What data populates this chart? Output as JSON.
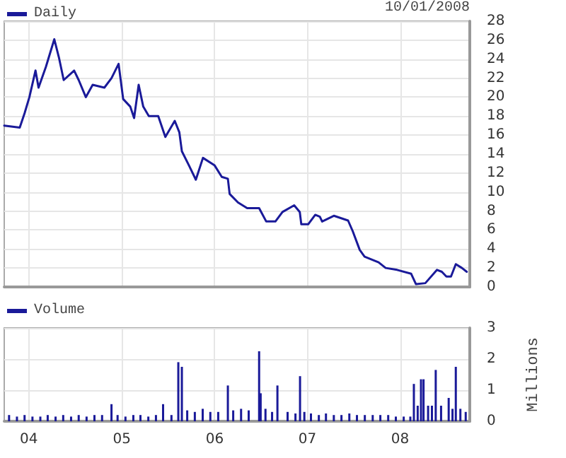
{
  "chart_data": [
    {
      "type": "line",
      "annotations": [
        "10/01/2008"
      ],
      "legend": "top left",
      "grid": true,
      "tick_labels": "y",
      "marker": "none",
      "line_style": "solid",
      "xlim": [
        "2003-09-26",
        "2008-10-01"
      ],
      "xticks": [
        {
          "value": "2004-01-01",
          "label": null
        },
        {
          "value": "2005-01-01",
          "label": null
        },
        {
          "value": "2006-01-01",
          "label": null
        },
        {
          "value": "2007-01-01",
          "label": null
        },
        {
          "value": "2008-01-01",
          "label": null
        }
      ],
      "ylim": [
        0,
        28
      ],
      "yticks": [
        0,
        2,
        4,
        6,
        8,
        10,
        12,
        14,
        16,
        18,
        20,
        22,
        24,
        26,
        28
      ],
      "series": [
        {
          "name": "Daily",
          "color": "#1a1a99",
          "x": [
            "2003-09-26",
            "2003-11-26",
            "2003-12-15",
            "2004-01-03",
            "2004-01-27",
            "2004-02-08",
            "2004-03-08",
            "2004-04-10",
            "2004-04-28",
            "2004-05-17",
            "2004-06-27",
            "2004-07-15",
            "2004-08-12",
            "2004-09-08",
            "2004-10-24",
            "2004-11-21",
            "2004-12-19",
            "2005-01-06",
            "2005-02-03",
            "2005-02-18",
            "2005-03-08",
            "2005-03-26",
            "2005-04-17",
            "2005-05-24",
            "2005-06-21",
            "2005-07-28",
            "2005-08-15",
            "2005-08-25",
            "2005-09-22",
            "2005-10-19",
            "2005-11-16",
            "2006-01-01",
            "2006-01-29",
            "2006-02-22",
            "2006-03-01",
            "2006-04-03",
            "2006-05-09",
            "2006-06-25",
            "2006-07-23",
            "2006-08-28",
            "2006-09-25",
            "2006-11-10",
            "2006-12-02",
            "2006-12-08",
            "2007-01-04",
            "2007-02-01",
            "2007-02-19",
            "2007-02-28",
            "2007-04-15",
            "2007-06-10",
            "2007-06-28",
            "2007-07-26",
            "2007-08-14",
            "2007-10-08",
            "2007-11-05",
            "2007-12-20",
            "2008-02-13",
            "2008-03-03",
            "2008-04-09",
            "2008-05-25",
            "2008-06-13",
            "2008-07-01",
            "2008-07-19",
            "2008-08-07",
            "2008-08-31",
            "2008-09-19"
          ],
          "values": [
            17.0,
            16.8,
            18.3,
            20.0,
            22.8,
            21.0,
            23.2,
            26.1,
            24.2,
            21.8,
            22.8,
            21.8,
            20.0,
            21.3,
            21.0,
            22.0,
            23.5,
            19.8,
            19.0,
            17.8,
            21.3,
            19.0,
            18.0,
            18.0,
            15.8,
            17.5,
            16.3,
            14.3,
            12.8,
            11.3,
            13.6,
            12.8,
            11.6,
            11.4,
            9.8,
            8.9,
            8.3,
            8.3,
            6.9,
            6.9,
            7.9,
            8.6,
            7.9,
            6.6,
            6.6,
            7.6,
            7.4,
            6.9,
            7.5,
            7.0,
            5.9,
            3.9,
            3.2,
            2.6,
            2.0,
            1.8,
            1.4,
            0.3,
            0.4,
            1.8,
            1.6,
            1.1,
            1.1,
            2.4,
            2.0,
            1.6
          ]
        }
      ]
    },
    {
      "type": "bar",
      "legend": "top left",
      "grid": true,
      "ylabel": "Millions",
      "xlim": [
        "2003-09-26",
        "2008-10-01"
      ],
      "xticks": [
        {
          "value": "2004-01-01",
          "label": "04"
        },
        {
          "value": "2005-01-01",
          "label": "05"
        },
        {
          "value": "2006-01-01",
          "label": "06"
        },
        {
          "value": "2007-01-01",
          "label": "07"
        },
        {
          "value": "2008-01-01",
          "label": "08"
        }
      ],
      "ylim": [
        0,
        3
      ],
      "yticks": [
        0,
        1,
        2,
        3
      ],
      "series": [
        {
          "name": "Volume",
          "color": "#1a1a99",
          "x": [
            "2003-10-15",
            "2003-11-15",
            "2003-12-15",
            "2004-01-15",
            "2004-02-15",
            "2004-03-15",
            "2004-04-15",
            "2004-05-15",
            "2004-06-15",
            "2004-07-15",
            "2004-08-15",
            "2004-09-15",
            "2004-10-15",
            "2004-11-21",
            "2004-12-15",
            "2005-01-15",
            "2005-02-15",
            "2005-03-15",
            "2005-04-15",
            "2005-05-15",
            "2005-06-12",
            "2005-07-15",
            "2005-08-11",
            "2005-08-25",
            "2005-09-15",
            "2005-10-15",
            "2005-11-15",
            "2005-12-15",
            "2006-01-15",
            "2006-02-22",
            "2006-03-15",
            "2006-04-15",
            "2006-05-15",
            "2006-06-25",
            "2006-07-01",
            "2006-07-20",
            "2006-08-15",
            "2006-09-05",
            "2006-10-15",
            "2006-11-15",
            "2006-12-03",
            "2006-12-20",
            "2007-01-15",
            "2007-02-15",
            "2007-03-15",
            "2007-04-15",
            "2007-05-15",
            "2007-06-15",
            "2007-07-15",
            "2007-08-15",
            "2007-09-15",
            "2007-10-15",
            "2007-11-15",
            "2007-12-15",
            "2008-01-15",
            "2008-02-10",
            "2008-02-24",
            "2008-03-10",
            "2008-03-23",
            "2008-04-02",
            "2008-04-20",
            "2008-05-05",
            "2008-05-20",
            "2008-06-10",
            "2008-07-10",
            "2008-07-25",
            "2008-08-07",
            "2008-08-25",
            "2008-09-15"
          ],
          "values": [
            0.2,
            0.15,
            0.2,
            0.15,
            0.15,
            0.2,
            0.15,
            0.2,
            0.15,
            0.2,
            0.15,
            0.2,
            0.2,
            0.55,
            0.2,
            0.15,
            0.2,
            0.2,
            0.15,
            0.2,
            0.55,
            0.2,
            1.9,
            1.75,
            0.35,
            0.3,
            0.4,
            0.3,
            0.3,
            1.15,
            0.35,
            0.4,
            0.35,
            2.25,
            0.9,
            0.4,
            0.3,
            1.15,
            0.3,
            0.25,
            1.45,
            0.3,
            0.25,
            0.2,
            0.25,
            0.2,
            0.2,
            0.25,
            0.2,
            0.2,
            0.2,
            0.2,
            0.2,
            0.15,
            0.15,
            0.15,
            1.2,
            0.5,
            1.35,
            1.35,
            0.5,
            0.5,
            1.65,
            0.5,
            0.75,
            0.4,
            1.75,
            0.4,
            0.3
          ]
        }
      ]
    }
  ]
}
